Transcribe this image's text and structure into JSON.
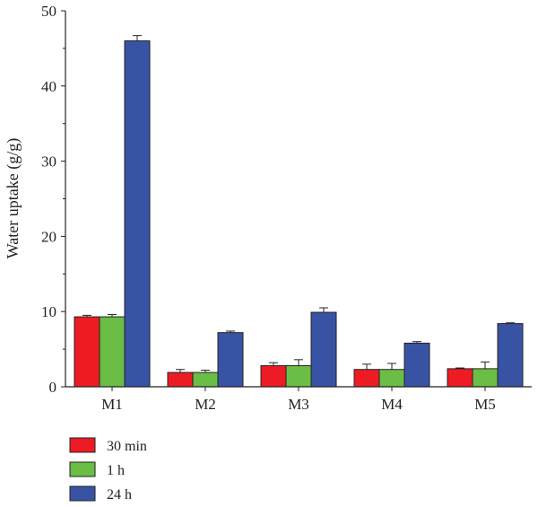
{
  "chart_data": {
    "type": "bar",
    "title": "",
    "xlabel": "",
    "ylabel": "Water uptake (g/g)",
    "ylim": [
      0,
      50
    ],
    "yticks": [
      0,
      10,
      20,
      30,
      40,
      50
    ],
    "categories": [
      "M1",
      "M2",
      "M3",
      "M4",
      "M5"
    ],
    "legend_position": "bottom-left",
    "grid": false,
    "series": [
      {
        "name": "30 min",
        "color": "#ed1c24",
        "values": [
          9.3,
          1.9,
          2.8,
          2.3,
          2.4
        ],
        "errors": [
          0.2,
          0.4,
          0.4,
          0.7,
          0.1
        ]
      },
      {
        "name": "1 h",
        "color": "#6abd45",
        "values": [
          9.3,
          1.9,
          2.8,
          2.3,
          2.4
        ],
        "errors": [
          0.3,
          0.3,
          0.8,
          0.8,
          0.9
        ]
      },
      {
        "name": "24 h",
        "color": "#3953a4",
        "values": [
          46.0,
          7.2,
          9.9,
          5.8,
          8.4
        ],
        "errors": [
          0.7,
          0.2,
          0.6,
          0.2,
          0.1
        ]
      }
    ]
  }
}
